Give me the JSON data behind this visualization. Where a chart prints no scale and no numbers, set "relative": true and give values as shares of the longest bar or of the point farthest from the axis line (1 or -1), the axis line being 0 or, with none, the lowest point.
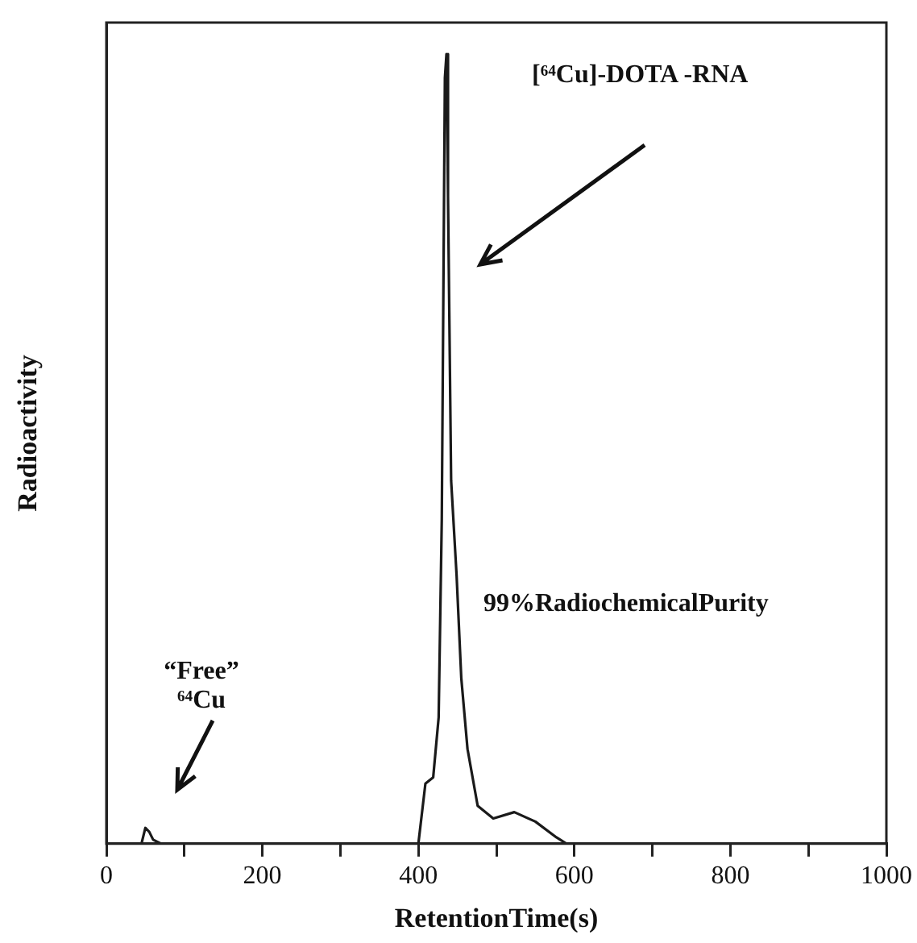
{
  "chart_data": {
    "type": "line",
    "relative": true,
    "xlabel": "RetentionTime(s)",
    "ylabel": "Radioactivity",
    "xlim": [
      0,
      1000
    ],
    "xticks": [
      0,
      {
        "value": 100,
        "label": null
      },
      200,
      {
        "value": 300,
        "label": null
      },
      400,
      {
        "value": 500,
        "label": null
      },
      600,
      {
        "value": 700,
        "label": null
      },
      800,
      {
        "value": 900,
        "label": null
      },
      1000
    ],
    "x": [
      0,
      45,
      50,
      55,
      60,
      70,
      400,
      409,
      419,
      426,
      430,
      434,
      436,
      438,
      442,
      449,
      455,
      463,
      476,
      496,
      523,
      550,
      577,
      590,
      1000
    ],
    "series": [
      {
        "color": "#1a1a1a",
        "values": [
          0,
          0,
          0.02,
          0.015,
          0.005,
          0,
          0,
          0.076,
          0.084,
          0.16,
          0.41,
          0.97,
          1.0,
          0.82,
          0.46,
          0.34,
          0.21,
          0.12,
          0.048,
          0.032,
          0.04,
          0.028,
          0.008,
          0,
          0
        ]
      }
    ],
    "annotations": [
      "[⁶⁴Cu]-DOTA -RNA",
      "99%RadiochemicalPurity",
      "“Free” ⁶⁴Cu"
    ],
    "grid": false,
    "legend": false,
    "marker": "none",
    "line_style": "solid"
  }
}
